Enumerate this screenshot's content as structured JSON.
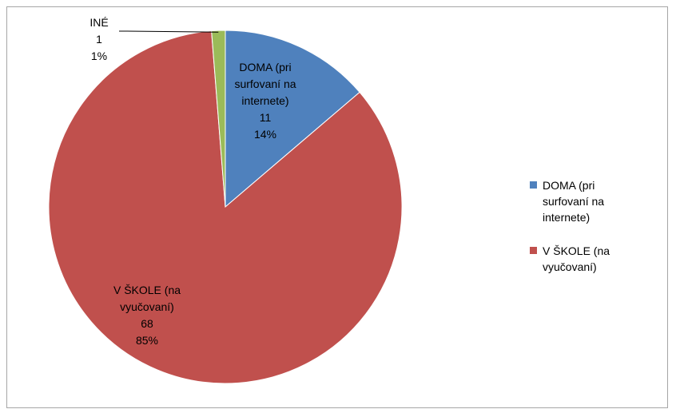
{
  "chart_data": {
    "type": "pie",
    "title": "",
    "slices": [
      {
        "name": "DOMA (pri surfovaní na internete)",
        "value": 11,
        "percent": "14%",
        "color": "#4f81bd",
        "label_lines": [
          "DOMA (pri",
          "surfovaní na",
          "internete)"
        ]
      },
      {
        "name": "V ŠKOLE (na vyučovaní)",
        "value": 68,
        "percent": "85%",
        "color": "#c0504d",
        "label_lines": [
          "V ŠKOLE (na",
          "vyučovaní)"
        ]
      },
      {
        "name": "INÉ",
        "value": 1,
        "percent": "1%",
        "color": "#9bbb59",
        "label_lines": [
          "INÉ"
        ]
      }
    ],
    "legend": {
      "placement": "right",
      "entries": [
        {
          "label": "DOMA (pri surfovaní na internete)",
          "color": "#4f81bd"
        },
        {
          "label": "V ŠKOLE (na vyučovaní)",
          "color": "#c0504d"
        }
      ]
    }
  }
}
